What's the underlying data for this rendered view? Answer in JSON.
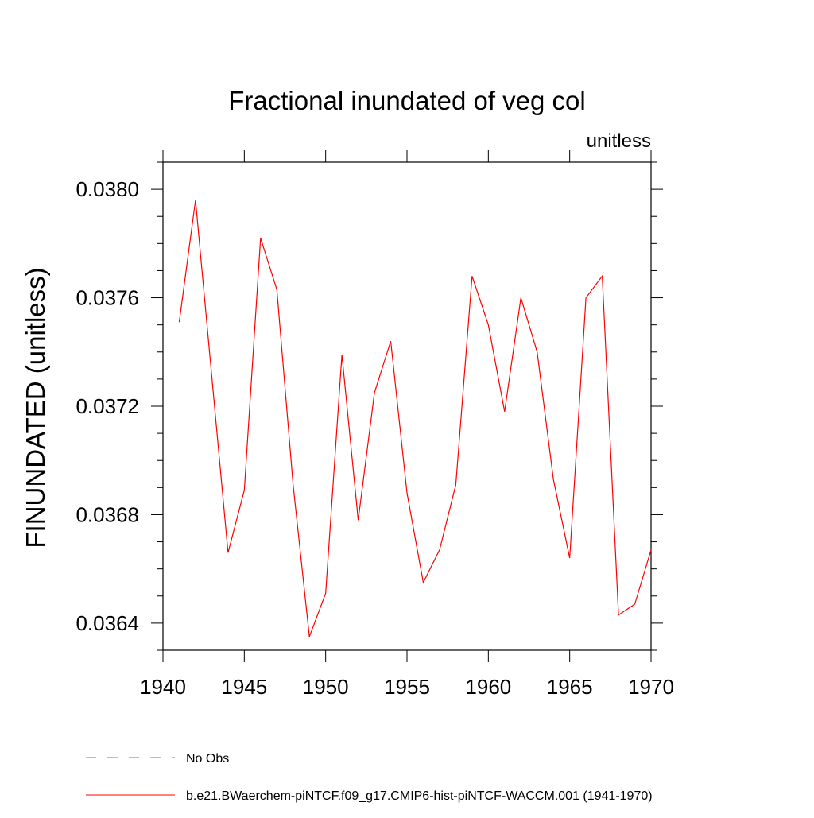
{
  "chart_data": {
    "type": "line",
    "title": "Fractional inundated of veg col",
    "subtitle": "unitless",
    "ylabel": "FINUNDATED  (unitless)",
    "xlabel": "",
    "xlim": [
      1940,
      1970
    ],
    "ylim": [
      0.0363,
      0.0381
    ],
    "x_ticks": [
      1940,
      1945,
      1950,
      1955,
      1960,
      1965,
      1970
    ],
    "x_tick_labels": [
      "1940",
      "1945",
      "1950",
      "1955",
      "1960",
      "1965",
      "1970"
    ],
    "y_ticks": [
      0.0364,
      0.0368,
      0.0372,
      0.0376,
      0.038
    ],
    "y_tick_labels": [
      "0.0364",
      "0.0368",
      "0.0372",
      "0.0376",
      "0.0380"
    ],
    "y_minor_step": 0.0001,
    "grid": false,
    "legend_position": "bottom-left",
    "series": [
      {
        "name": "b.e21.BWaerchem-piNTCF.f09_g17.CMIP6-hist-piNTCF-WACCM.001 (1941-1970)",
        "color": "#ff0000",
        "style": "solid",
        "x": [
          1941,
          1942,
          1943,
          1944,
          1945,
          1946,
          1947,
          1948,
          1949,
          1950,
          1951,
          1952,
          1953,
          1954,
          1955,
          1956,
          1957,
          1958,
          1959,
          1960,
          1961,
          1962,
          1963,
          1964,
          1965,
          1966,
          1967,
          1968,
          1969,
          1970
        ],
        "values": [
          0.03751,
          0.03796,
          0.03731,
          0.03666,
          0.03689,
          0.03782,
          0.03763,
          0.03691,
          0.03635,
          0.03651,
          0.03739,
          0.03678,
          0.03725,
          0.03744,
          0.03688,
          0.03655,
          0.03667,
          0.03691,
          0.03768,
          0.0375,
          0.03718,
          0.0376,
          0.0374,
          0.03693,
          0.03664,
          0.0376,
          0.03768,
          0.03643,
          0.03647,
          0.03667
        ]
      }
    ],
    "legend_entries": [
      {
        "label": "No Obs",
        "color": "#7b68b5",
        "style": "dashed"
      },
      {
        "label": "b.e21.BWaerchem-piNTCF.f09_g17.CMIP6-hist-piNTCF-WACCM.001 (1941-1970)",
        "color": "#ff0000",
        "style": "solid"
      }
    ]
  }
}
